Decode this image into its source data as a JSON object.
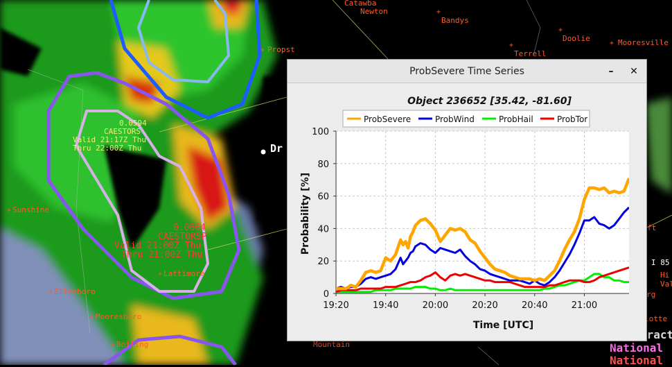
{
  "map": {
    "places": [
      {
        "name": "Catawba",
        "cross": false
      },
      {
        "name": "Newton",
        "cross": false
      },
      {
        "name": "Bandys",
        "cross": true
      },
      {
        "name": "Doolie",
        "cross": true
      },
      {
        "name": "Mooresville",
        "cross": true
      },
      {
        "name": "Terrell",
        "cross": true
      },
      {
        "name": "Propst",
        "cross": true
      },
      {
        "name": "Mountain",
        "cross": false
      },
      {
        "name": "Sunshine",
        "cross": true
      },
      {
        "name": "Ellenboro",
        "cross": true
      },
      {
        "name": "Mooresboro",
        "cross": true
      },
      {
        "name": "Boiling",
        "cross": true
      },
      {
        "name": "Lattimore",
        "cross": true
      }
    ],
    "drexel_label": "Dr",
    "storm_upper": {
      "prob": "0.0594",
      "id": "CAESTORS",
      "valid": "Valid 21:17Z Thu",
      "thru": "Thru 22:00Z Thu"
    },
    "storm_lower": {
      "prob": "0.0664",
      "id": "CAESTORSP",
      "valid": "Valid 21:00Z Thu",
      "thru": "Thru 21:00Z Thu"
    },
    "right_fragments": {
      "i85": "I 85",
      "hi": "Hi",
      "val": "Val",
      "rg": "rg",
      "lotte": "lotte",
      "ft": "ft"
    },
    "bottom_right": {
      "line1": "tract",
      "line2": "National",
      "line3": "National"
    }
  },
  "window": {
    "title": "ProbSevere Time Series",
    "minimize_label": "–",
    "close_label": "✕"
  },
  "chart_data": {
    "type": "line",
    "title": "Object 236652 [35.42, -81.60]",
    "xlabel": "Time [UTC]",
    "ylabel": "Probability [%]",
    "ylim": [
      0,
      100
    ],
    "yticks": [
      0,
      20,
      40,
      60,
      80,
      100
    ],
    "xlim_minutes": [
      0,
      118
    ],
    "xticks": [
      {
        "label": "19:20",
        "min": 0
      },
      {
        "label": "19:40",
        "min": 20
      },
      {
        "label": "20:00",
        "min": 40
      },
      {
        "label": "20:20",
        "min": 60
      },
      {
        "label": "20:40",
        "min": 80
      },
      {
        "label": "21:00",
        "min": 100
      }
    ],
    "grid": true,
    "legend_position": "top",
    "series": [
      {
        "name": "ProbSevere",
        "color": "#ffa500",
        "x": [
          0,
          2,
          4,
          6,
          8,
          10,
          12,
          14,
          16,
          18,
          20,
          22,
          24,
          26,
          27,
          28,
          29,
          30,
          31,
          32,
          34,
          36,
          38,
          40,
          42,
          44,
          46,
          48,
          50,
          52,
          54,
          56,
          58,
          60,
          62,
          64,
          66,
          68,
          70,
          72,
          74,
          76,
          78,
          80,
          82,
          84,
          86,
          88,
          90,
          92,
          94,
          96,
          98,
          100,
          102,
          104,
          106,
          108,
          110,
          112,
          114,
          116,
          118
        ],
        "values": [
          3,
          3,
          3,
          5,
          4,
          8,
          13,
          14,
          13,
          14,
          22,
          20,
          24,
          33,
          30,
          32,
          28,
          35,
          38,
          42,
          45,
          46,
          43,
          39,
          32,
          36,
          40,
          39,
          40,
          38,
          33,
          31,
          26,
          22,
          18,
          15,
          14,
          13,
          11,
          10,
          9,
          9,
          9,
          8,
          9,
          8,
          11,
          14,
          20,
          27,
          33,
          38,
          46,
          58,
          65,
          65,
          64,
          65,
          62,
          63,
          62,
          63,
          71
        ]
      },
      {
        "name": "ProbWind",
        "color": "#0000e0",
        "x": [
          0,
          2,
          4,
          6,
          8,
          10,
          12,
          14,
          16,
          18,
          20,
          22,
          24,
          26,
          27,
          28,
          29,
          30,
          31,
          32,
          34,
          36,
          38,
          40,
          42,
          44,
          46,
          48,
          50,
          52,
          54,
          56,
          58,
          60,
          62,
          64,
          66,
          68,
          70,
          72,
          74,
          76,
          78,
          80,
          82,
          84,
          86,
          88,
          90,
          92,
          94,
          96,
          98,
          100,
          102,
          104,
          106,
          108,
          110,
          112,
          114,
          116,
          118
        ],
        "values": [
          3,
          4,
          3,
          4,
          4,
          6,
          9,
          10,
          9,
          10,
          11,
          12,
          15,
          22,
          18,
          20,
          22,
          25,
          26,
          29,
          31,
          30,
          27,
          25,
          28,
          27,
          26,
          25,
          27,
          23,
          20,
          18,
          15,
          14,
          12,
          11,
          10,
          9,
          8,
          8,
          8,
          7,
          6,
          8,
          6,
          5,
          7,
          10,
          14,
          19,
          24,
          30,
          37,
          45,
          45,
          47,
          43,
          42,
          40,
          42,
          46,
          50,
          53
        ]
      },
      {
        "name": "ProbHail",
        "color": "#00ee00",
        "x": [
          0,
          2,
          4,
          6,
          8,
          10,
          12,
          14,
          16,
          18,
          20,
          22,
          24,
          26,
          28,
          30,
          32,
          34,
          36,
          38,
          40,
          42,
          44,
          46,
          48,
          50,
          52,
          54,
          56,
          58,
          60,
          62,
          64,
          66,
          68,
          70,
          72,
          74,
          76,
          78,
          80,
          82,
          84,
          86,
          88,
          90,
          92,
          94,
          96,
          98,
          100,
          102,
          104,
          106,
          108,
          110,
          112,
          114,
          116,
          118
        ],
        "values": [
          1,
          1,
          1,
          1,
          1,
          1,
          1,
          1,
          2,
          2,
          2,
          2,
          3,
          3,
          3,
          3,
          4,
          4,
          4,
          3,
          3,
          2,
          2,
          3,
          2,
          2,
          2,
          2,
          2,
          2,
          2,
          2,
          2,
          2,
          2,
          2,
          2,
          2,
          2,
          2,
          2,
          2,
          3,
          3,
          4,
          5,
          5,
          6,
          7,
          8,
          8,
          10,
          12,
          12,
          10,
          10,
          8,
          8,
          7,
          7
        ]
      },
      {
        "name": "ProbTor",
        "color": "#ee0000",
        "x": [
          0,
          2,
          4,
          6,
          8,
          10,
          12,
          14,
          16,
          18,
          20,
          22,
          24,
          26,
          28,
          30,
          32,
          34,
          36,
          38,
          40,
          42,
          44,
          46,
          48,
          50,
          52,
          54,
          56,
          58,
          60,
          62,
          64,
          66,
          68,
          70,
          72,
          74,
          76,
          78,
          80,
          82,
          84,
          86,
          88,
          90,
          92,
          94,
          96,
          98,
          100,
          102,
          104,
          106,
          108,
          110,
          112,
          114,
          116,
          118
        ],
        "values": [
          1,
          2,
          2,
          2,
          2,
          3,
          3,
          3,
          3,
          3,
          4,
          4,
          4,
          5,
          6,
          7,
          7,
          8,
          10,
          11,
          13,
          10,
          8,
          11,
          12,
          11,
          12,
          11,
          10,
          9,
          8,
          8,
          7,
          7,
          7,
          7,
          6,
          5,
          4,
          4,
          4,
          4,
          4,
          5,
          5,
          6,
          7,
          8,
          8,
          8,
          7,
          7,
          8,
          10,
          11,
          12,
          13,
          14,
          15,
          16
        ]
      }
    ]
  }
}
